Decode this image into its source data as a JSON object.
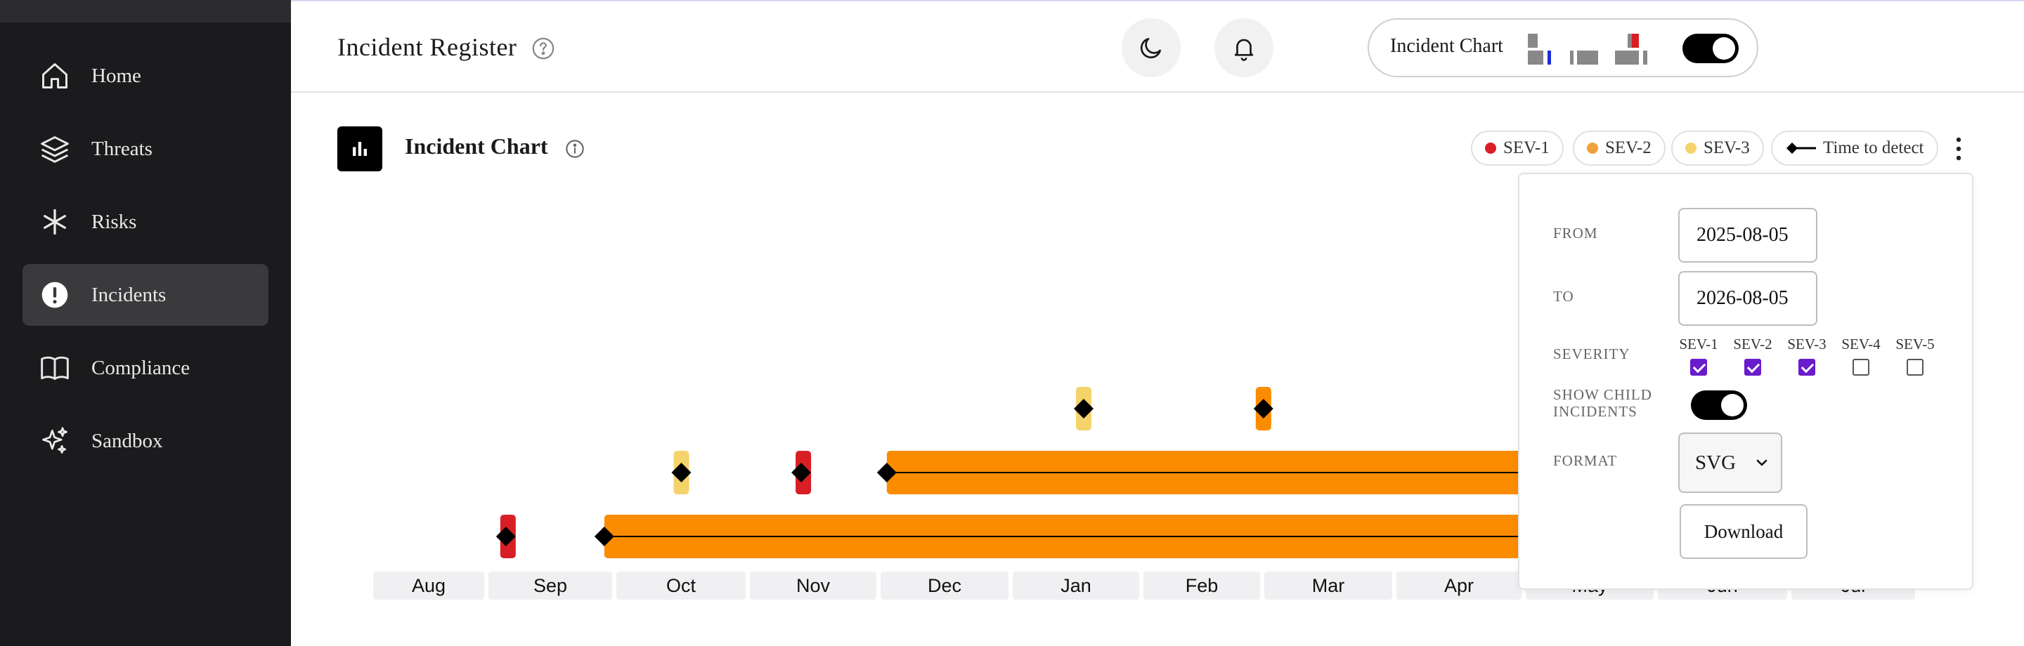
{
  "sidebar": {
    "items": [
      {
        "label": "Home",
        "icon": "home-icon",
        "active": false
      },
      {
        "label": "Threats",
        "icon": "layers-icon",
        "active": false
      },
      {
        "label": "Risks",
        "icon": "asterisk-icon",
        "active": false
      },
      {
        "label": "Incidents",
        "icon": "alert-circle-icon",
        "active": true
      },
      {
        "label": "Compliance",
        "icon": "book-icon",
        "active": false
      },
      {
        "label": "Sandbox",
        "icon": "sparkles-icon",
        "active": false
      }
    ]
  },
  "header": {
    "title": "Incident Register",
    "view_switch": {
      "label": "Incident Chart",
      "enabled": true
    }
  },
  "chart_card": {
    "title": "Incident Chart",
    "legend": [
      {
        "label": "SEV-1",
        "color": "#d81f26"
      },
      {
        "label": "SEV-2",
        "color": "#f0a23b"
      },
      {
        "label": "SEV-3",
        "color": "#f5d36b"
      },
      {
        "label": "Time to detect",
        "color": "#000000"
      }
    ]
  },
  "chart_data": {
    "type": "timeline",
    "months": [
      "Aug",
      "Sep",
      "Oct",
      "Nov",
      "Dec",
      "Jan",
      "Feb",
      "Mar",
      "Apr",
      "May",
      "Jun",
      "Jul"
    ],
    "incidents": [
      {
        "severity": "SEV-1",
        "lane": 1,
        "start": "2025-09-05",
        "end": "2025-09-06",
        "detect": "2025-09-05"
      },
      {
        "severity": "SEV-2",
        "lane": 1,
        "start": "2025-09-28",
        "end": "2026-08-05",
        "detect": "2025-09-28"
      },
      {
        "severity": "SEV-3",
        "lane": 2,
        "start": "2025-10-15",
        "end": "2025-10-17",
        "detect": "2025-10-16"
      },
      {
        "severity": "SEV-1",
        "lane": 2,
        "start": "2025-11-12",
        "end": "2025-11-15",
        "detect": "2025-11-13"
      },
      {
        "severity": "SEV-2",
        "lane": 2,
        "start": "2025-12-03",
        "end": "2026-08-05",
        "detect": "2025-12-03"
      },
      {
        "severity": "SEV-3",
        "lane": 3,
        "start": "2026-01-17",
        "end": "2026-01-19",
        "detect": "2026-01-18"
      },
      {
        "severity": "SEV-2",
        "lane": 3,
        "start": "2026-02-28",
        "end": "2026-03-02",
        "detect": "2026-03-01"
      }
    ],
    "xrange": [
      "2025-08-05",
      "2026-08-05"
    ]
  },
  "panel": {
    "from_label": "FROM",
    "from_value": "2025-08-05",
    "to_label": "TO",
    "to_value": "2026-08-05",
    "severity_label": "SEVERITY",
    "severities": [
      {
        "label": "SEV-1",
        "checked": true
      },
      {
        "label": "SEV-2",
        "checked": true
      },
      {
        "label": "SEV-3",
        "checked": true
      },
      {
        "label": "SEV-4",
        "checked": false
      },
      {
        "label": "SEV-5",
        "checked": false
      }
    ],
    "child_label_1": "SHOW CHILD",
    "child_label_2": "INCIDENTS",
    "show_child": true,
    "format_label": "FORMAT",
    "format_value": "SVG",
    "download_label": "Download"
  }
}
